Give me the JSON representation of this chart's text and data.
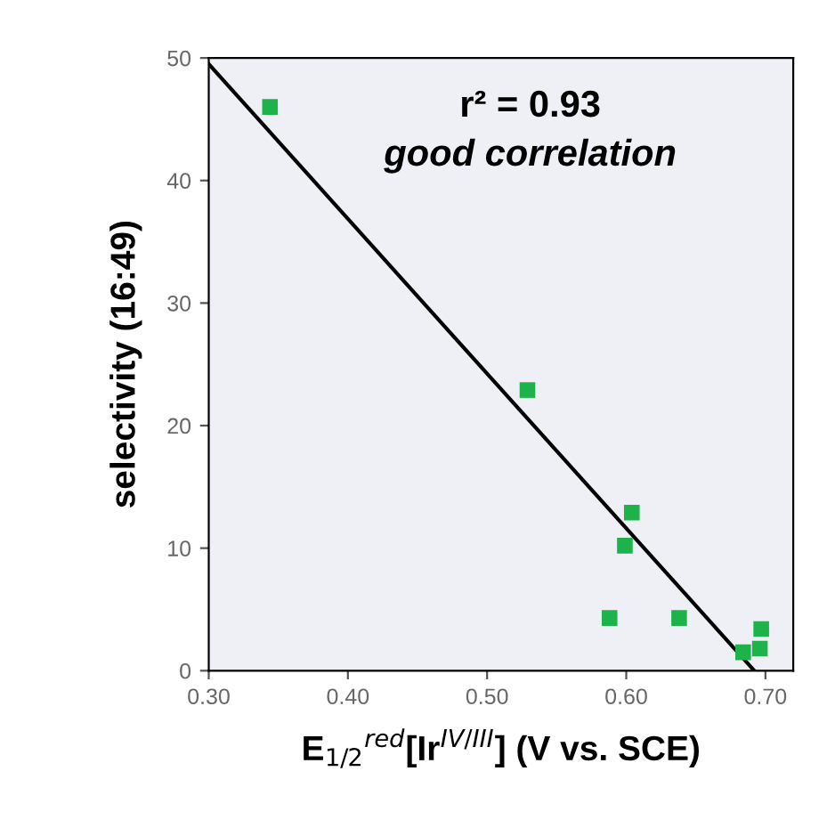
{
  "chart_data": {
    "type": "scatter",
    "xlabel": "E$_{1/2}$$^{red}$[Ir$^{IV/III}$] (V vs. SCE)",
    "ylabel": "selectivity (16:49)",
    "annotations": [
      "r² = 0.93",
      "good correlation"
    ],
    "series": [
      {
        "color": "#1db34a",
        "marker": "square",
        "x": [
          0.344,
          0.529,
          0.604,
          0.599,
          0.588,
          0.638,
          0.684,
          0.696,
          0.697
        ],
        "values": [
          46.0,
          22.9,
          12.9,
          10.2,
          4.3,
          4.3,
          1.5,
          1.8,
          3.4
        ]
      },
      {
        "type": "line",
        "color": "#000000",
        "x": [
          0.3,
          0.692
        ],
        "values": [
          49.5,
          0
        ]
      }
    ],
    "xlim": [
      0.3,
      0.72
    ],
    "ylim": [
      0,
      50
    ],
    "xticks": [
      {
        "value": 0.3,
        "label": "0.30"
      },
      {
        "value": 0.4,
        "label": "0.40"
      },
      {
        "value": 0.5,
        "label": "0.50"
      },
      {
        "value": 0.6,
        "label": "0.60"
      },
      {
        "value": 0.7,
        "label": "0.70"
      }
    ],
    "yticks": [
      0,
      10,
      20,
      30,
      40,
      50
    ],
    "grid": false,
    "legend": false
  }
}
